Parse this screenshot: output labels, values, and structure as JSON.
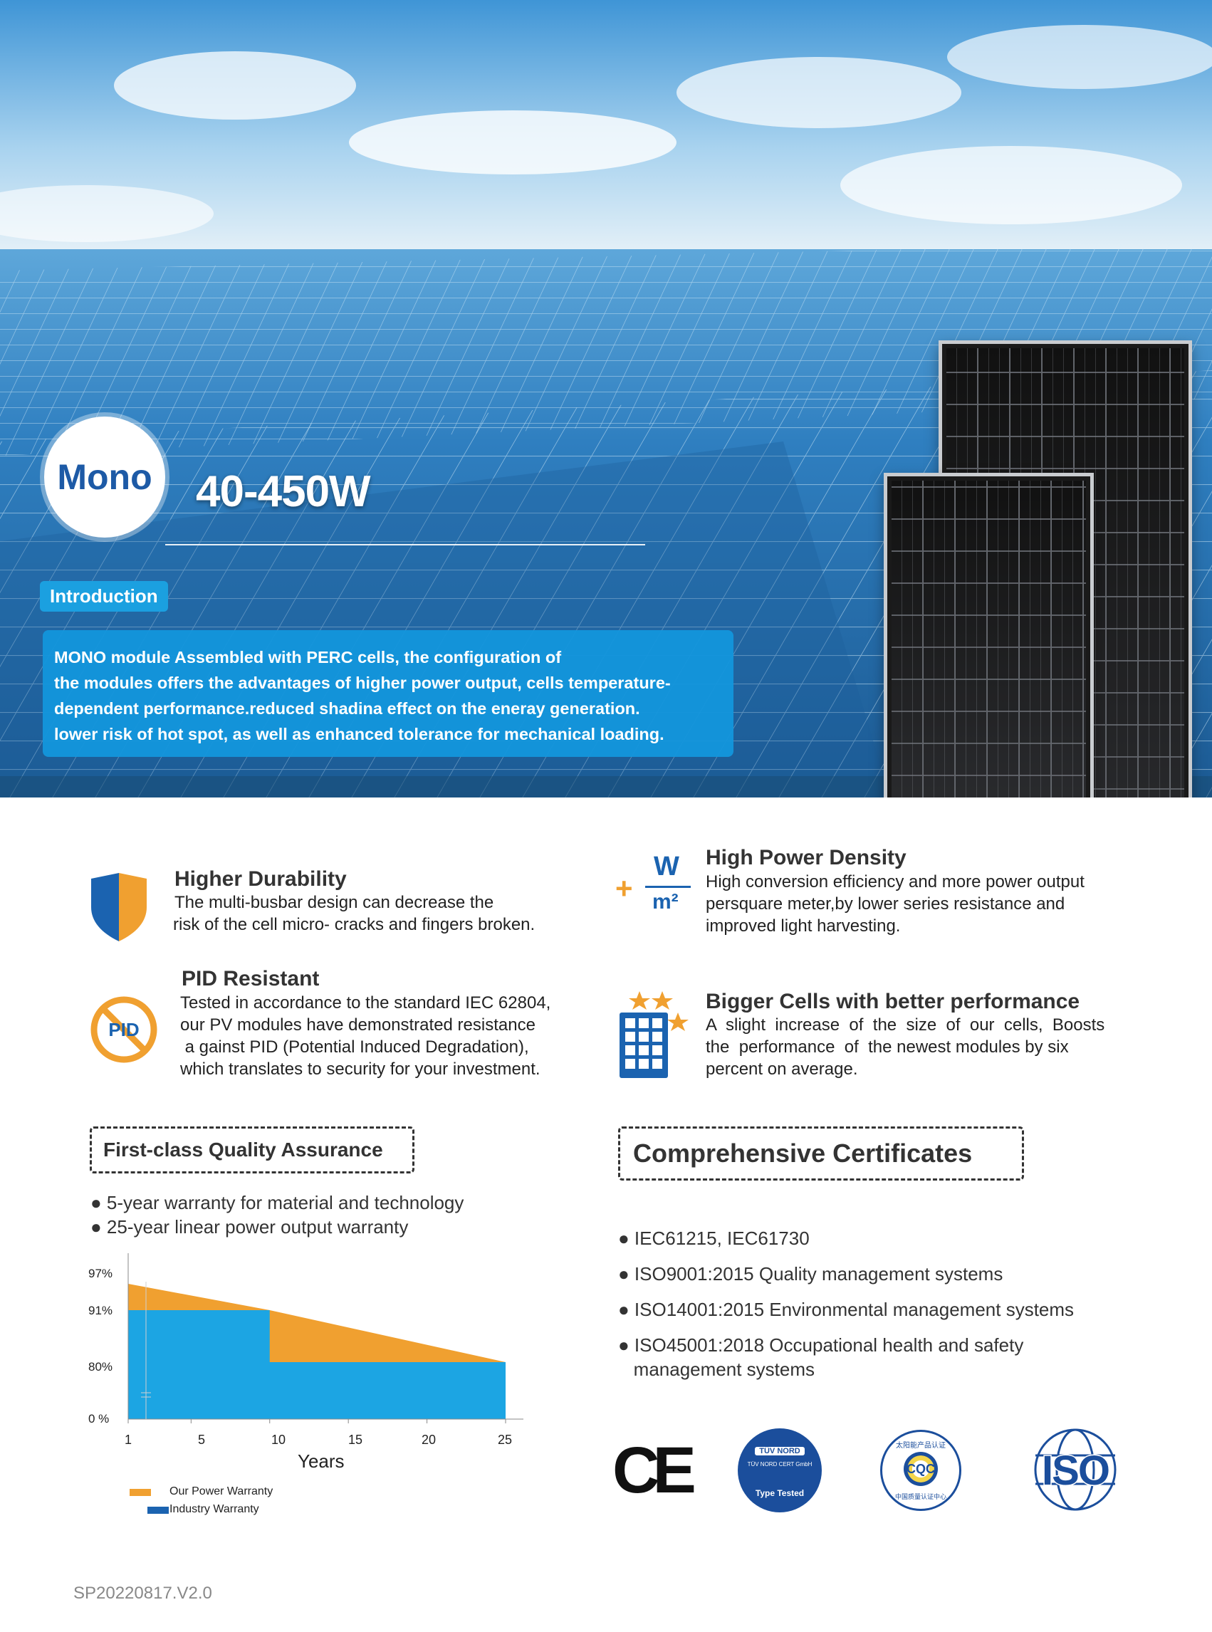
{
  "hero": {
    "badge": "Mono",
    "power_range": "40-450W",
    "intro_tag": "Introduction",
    "intro_lines": [
      "MONO module Assembled with PERC cells, the configuration of",
      "the modules offers the advantages of higher power output, cells temperature-",
      "dependent performance.reduced shadina effect on the eneray generation.",
      "lower risk of hot spot, as well as enhanced tolerance for mechanical loading."
    ]
  },
  "features": {
    "durability": {
      "title": "Higher Durability",
      "lines": [
        "The multi-busbar design can decrease the",
        "risk of the cell micro- cracks and fingers broken."
      ]
    },
    "density": {
      "title": "High Power Density",
      "icon_top": "W",
      "icon_bottom": "m²",
      "icon_plus": "+",
      "lines": [
        "High conversion efficiency and more power output",
        "persquare meter,by lower series resistance and",
        "improved light harvesting."
      ]
    },
    "pid": {
      "title": "PID Resistant",
      "icon_label": "PID",
      "lines": [
        "Tested in accordance to the standard IEC 62804,",
        "our PV modules have demonstrated resistance",
        " a gainst PID (Potential Induced Degradation),",
        "which translates to security for your investment."
      ]
    },
    "cells": {
      "title": "Bigger Cells with better performance",
      "lines": [
        "A  slight  increase  of  the  size  of  our  cells,  Boosts",
        "the  performance  of  the newest modules by six",
        "percent on average."
      ]
    }
  },
  "quality": {
    "heading": "First-class Quality Assurance",
    "bullets": [
      "● 5-year warranty for material and technology",
      "● 25-year linear power output warranty"
    ]
  },
  "chart_data": {
    "type": "area",
    "xlabel": "Years",
    "x_ticks": [
      "1",
      "5",
      "10",
      "15",
      "20",
      "25"
    ],
    "y_ticks": [
      "97%",
      "91%",
      "80%",
      "0 %"
    ],
    "series": [
      {
        "name": "Our Power Warranty",
        "color": "#f0a030",
        "x": [
          1,
          10,
          25
        ],
        "y": [
          97,
          91,
          80
        ]
      },
      {
        "name": "Industry Warranty",
        "color": "#1ca5e3",
        "x": [
          1,
          10,
          10,
          25
        ],
        "y": [
          91,
          91,
          80,
          80
        ]
      }
    ]
  },
  "certificates": {
    "heading": "Comprehensive Certificates",
    "items": [
      "● IEC61215, IEC61730",
      "● ISO9001:2015 Quality management systems",
      "● ISO14001:2015 Environmental management systems",
      "● ISO45001:2018 Occupational health and safety",
      "   management systems"
    ],
    "logos": {
      "ce": "CE",
      "tuv_top": "TÜV NORD",
      "tuv_mid": "TÜV NORD CERT GmbH",
      "tuv_bottom": "Type Tested",
      "cqc_top": "太阳能产品认证",
      "cqc_mid": "CQC",
      "cqc_bottom": "中国质量认证中心",
      "iso": "ISO"
    }
  },
  "footer": {
    "code": "SP20220817.V2.0"
  }
}
